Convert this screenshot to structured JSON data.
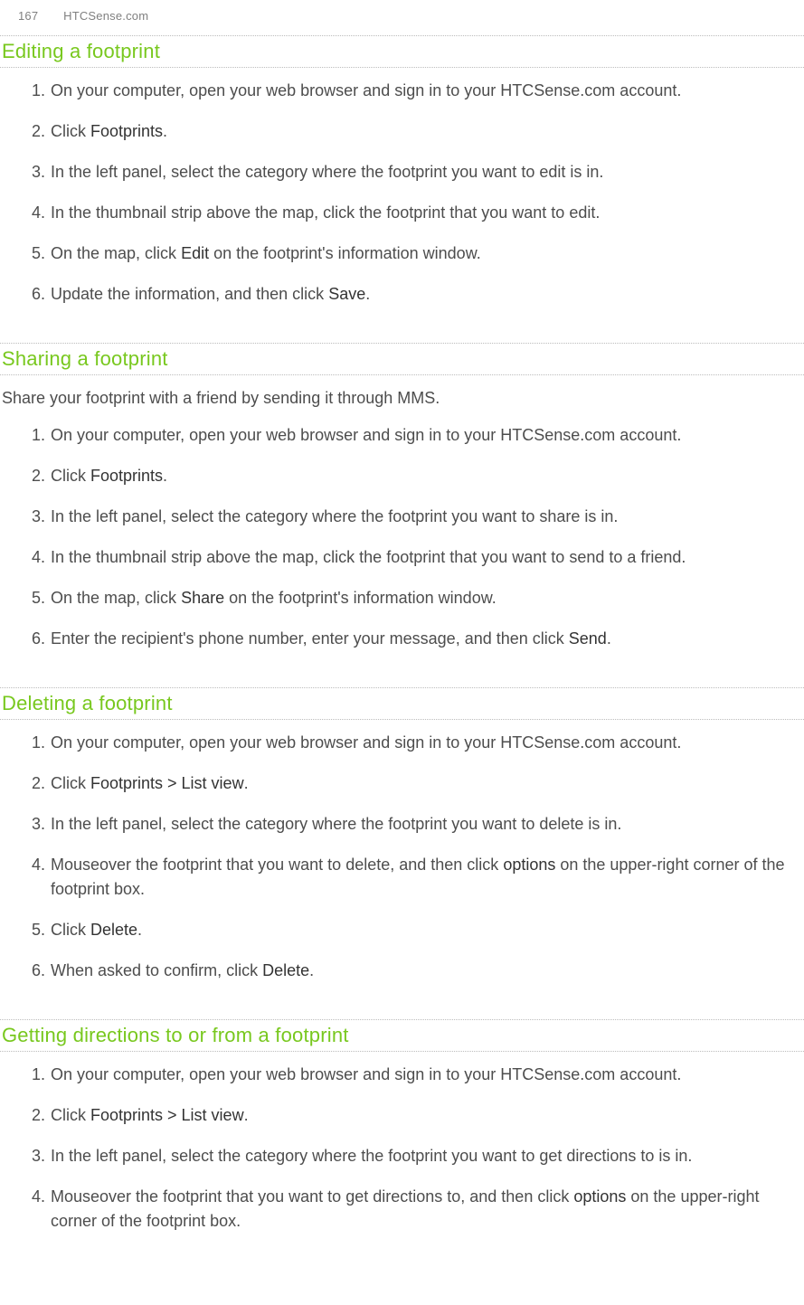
{
  "header": {
    "page_number": "167",
    "running_head": "HTCSense.com"
  },
  "sections": [
    {
      "title": "Editing a footprint",
      "intro": null,
      "steps": [
        {
          "parts": [
            {
              "t": "plain",
              "v": "On your computer, open your web browser and sign in to your HTCSense.com account."
            }
          ]
        },
        {
          "parts": [
            {
              "t": "plain",
              "v": "Click "
            },
            {
              "t": "bold",
              "v": "Footprints"
            },
            {
              "t": "plain",
              "v": "."
            }
          ]
        },
        {
          "parts": [
            {
              "t": "plain",
              "v": "In the left panel, select the category where the footprint you want to edit is in."
            }
          ]
        },
        {
          "parts": [
            {
              "t": "plain",
              "v": "In the thumbnail strip above the map, click the footprint that you want to edit."
            }
          ]
        },
        {
          "parts": [
            {
              "t": "plain",
              "v": "On the map, click "
            },
            {
              "t": "bold",
              "v": "Edit"
            },
            {
              "t": "plain",
              "v": " on the footprint's information window."
            }
          ]
        },
        {
          "parts": [
            {
              "t": "plain",
              "v": "Update the information, and then click "
            },
            {
              "t": "bold",
              "v": "Save"
            },
            {
              "t": "plain",
              "v": "."
            }
          ]
        }
      ]
    },
    {
      "title": "Sharing a footprint",
      "intro": "Share your footprint with a friend by sending it through MMS.",
      "steps": [
        {
          "parts": [
            {
              "t": "plain",
              "v": "On your computer, open your web browser and sign in to your HTCSense.com account."
            }
          ]
        },
        {
          "parts": [
            {
              "t": "plain",
              "v": "Click "
            },
            {
              "t": "bold",
              "v": "Footprints"
            },
            {
              "t": "plain",
              "v": "."
            }
          ]
        },
        {
          "parts": [
            {
              "t": "plain",
              "v": "In the left panel, select the category where the footprint you want to share is in."
            }
          ]
        },
        {
          "parts": [
            {
              "t": "plain",
              "v": "In the thumbnail strip above the map, click the footprint that you want to send to a friend."
            }
          ]
        },
        {
          "parts": [
            {
              "t": "plain",
              "v": "On the map, click "
            },
            {
              "t": "bold",
              "v": "Share"
            },
            {
              "t": "plain",
              "v": " on the footprint's information window."
            }
          ]
        },
        {
          "parts": [
            {
              "t": "plain",
              "v": "Enter the recipient's phone number, enter your message, and then click "
            },
            {
              "t": "bold",
              "v": "Send"
            },
            {
              "t": "plain",
              "v": "."
            }
          ]
        }
      ]
    },
    {
      "title": "Deleting a footprint",
      "intro": null,
      "steps": [
        {
          "parts": [
            {
              "t": "plain",
              "v": "On your computer, open your web browser and sign in to your HTCSense.com account."
            }
          ]
        },
        {
          "parts": [
            {
              "t": "plain",
              "v": "Click "
            },
            {
              "t": "bold",
              "v": "Footprints > List view"
            },
            {
              "t": "plain",
              "v": "."
            }
          ]
        },
        {
          "parts": [
            {
              "t": "plain",
              "v": "In the left panel, select the category where the footprint you want to delete is in."
            }
          ]
        },
        {
          "parts": [
            {
              "t": "plain",
              "v": "Mouseover the footprint that you want to delete, and then click "
            },
            {
              "t": "bold",
              "v": "options"
            },
            {
              "t": "plain",
              "v": " on the upper-right corner of the footprint box."
            }
          ]
        },
        {
          "parts": [
            {
              "t": "plain",
              "v": "Click "
            },
            {
              "t": "bold",
              "v": "Delete"
            },
            {
              "t": "plain",
              "v": "."
            }
          ]
        },
        {
          "parts": [
            {
              "t": "plain",
              "v": "When asked to confirm, click "
            },
            {
              "t": "bold",
              "v": "Delete"
            },
            {
              "t": "plain",
              "v": "."
            }
          ]
        }
      ]
    },
    {
      "title": "Getting directions to or from a footprint",
      "intro": null,
      "steps": [
        {
          "parts": [
            {
              "t": "plain",
              "v": "On your computer, open your web browser and sign in to your HTCSense.com account."
            }
          ]
        },
        {
          "parts": [
            {
              "t": "plain",
              "v": "Click "
            },
            {
              "t": "bold",
              "v": "Footprints > List view"
            },
            {
              "t": "plain",
              "v": "."
            }
          ]
        },
        {
          "parts": [
            {
              "t": "plain",
              "v": "In the left panel, select the category where the footprint you want to get directions to is in."
            }
          ]
        },
        {
          "parts": [
            {
              "t": "plain",
              "v": "Mouseover the footprint that you want to get directions to, and then click "
            },
            {
              "t": "bold",
              "v": "options"
            },
            {
              "t": "plain",
              "v": " on the upper-right corner of the footprint box."
            }
          ]
        }
      ]
    }
  ]
}
